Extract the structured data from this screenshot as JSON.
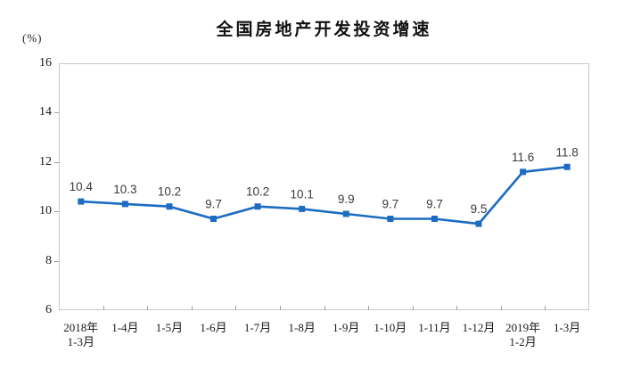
{
  "title": "全国房地产开发投资增速",
  "y_axis": {
    "unit_label": "(%)",
    "tick_labels": [
      "16",
      "14",
      "12",
      "10",
      "8",
      "6"
    ]
  },
  "x_axis": {
    "labels": [
      "2018年\n1-3月",
      "1-4月",
      "1-5月",
      "1-6月",
      "1-7月",
      "1-8月",
      "1-9月",
      "1-10月",
      "1-11月",
      "1-12月",
      "2019年\n1-2月",
      "1-3月"
    ]
  },
  "chart_data": {
    "type": "line",
    "title": "全国房地产开发投资增速",
    "categories": [
      "2018年 1-3月",
      "1-4月",
      "1-5月",
      "1-6月",
      "1-7月",
      "1-8月",
      "1-9月",
      "1-10月",
      "1-11月",
      "1-12月",
      "2019年 1-2月",
      "1-3月"
    ],
    "values": [
      10.4,
      10.3,
      10.2,
      9.7,
      10.2,
      10.1,
      9.9,
      9.7,
      9.7,
      9.5,
      11.6,
      11.8
    ],
    "data_labels": [
      "10.4",
      "10.3",
      "10.2",
      "9.7",
      "10.2",
      "10.1",
      "9.9",
      "9.7",
      "9.7",
      "9.5",
      "11.6",
      "11.8"
    ],
    "xlabel": "",
    "ylabel": "(%)",
    "ylim": [
      6,
      16
    ],
    "yticks": [
      16,
      14,
      12,
      10,
      8,
      6
    ],
    "grid": false,
    "legend": "none",
    "marker": "square",
    "colors": {
      "line": "#1c6cc2",
      "marker": "#1c6cc2",
      "plot_border": "#c9c9c9",
      "tick": "#a0a0a0",
      "data_label": "#3a3a3a",
      "axis_text": "#1a1a1a",
      "title_text": "#111111"
    }
  }
}
